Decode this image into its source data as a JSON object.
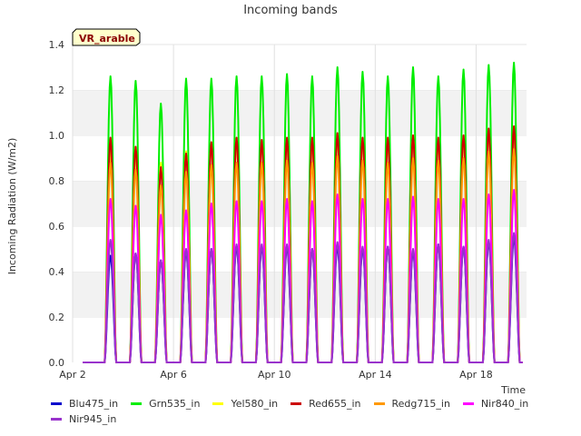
{
  "chart_data": {
    "type": "line",
    "title": "Incoming bands",
    "xlabel": "Time",
    "ylabel": "Incoming Radiation (W/m2)",
    "badge": "VR_arable",
    "xlim": [
      "2023-04-02",
      "2023-04-20"
    ],
    "x_ticks": [
      "Apr 2",
      "Apr 6",
      "Apr 10",
      "Apr 14",
      "Apr 18"
    ],
    "ylim": [
      0,
      1.4
    ],
    "y_ticks": [
      "0.0",
      "0.2",
      "0.4",
      "0.6",
      "0.8",
      "1.0",
      "1.2",
      "1.4"
    ],
    "grid": "horizontal bands",
    "legend_position": "bottom",
    "days": [
      "Apr 3",
      "Apr 4",
      "Apr 5",
      "Apr 6",
      "Apr 7",
      "Apr 8",
      "Apr 9",
      "Apr 10",
      "Apr 11",
      "Apr 12",
      "Apr 13",
      "Apr 14",
      "Apr 15",
      "Apr 16",
      "Apr 17",
      "Apr 18",
      "Apr 19"
    ],
    "series": [
      {
        "name": "Blu475_in",
        "color": "#0000cc",
        "daily_peak": [
          0.47,
          0.48,
          0.45,
          0.49,
          0.5,
          0.51,
          0.51,
          0.51,
          0.5,
          0.51,
          0.5,
          0.51,
          0.49,
          0.52,
          0.51,
          0.53,
          0.55
        ]
      },
      {
        "name": "Grn535_in",
        "color": "#00ee00",
        "daily_peak": [
          1.26,
          1.24,
          1.14,
          1.25,
          1.25,
          1.26,
          1.26,
          1.27,
          1.26,
          1.3,
          1.28,
          1.26,
          1.3,
          1.26,
          1.29,
          1.31,
          1.32
        ]
      },
      {
        "name": "Yel580_in",
        "color": "#ffff00",
        "daily_peak": [
          0.93,
          0.92,
          0.88,
          0.93,
          0.96,
          0.97,
          0.97,
          0.98,
          0.97,
          0.99,
          0.98,
          0.97,
          1.0,
          0.97,
          0.98,
          1.01,
          1.02
        ]
      },
      {
        "name": "Red655_in",
        "color": "#cc0000",
        "daily_peak": [
          0.99,
          0.95,
          0.86,
          0.92,
          0.97,
          0.99,
          0.98,
          0.99,
          0.99,
          1.01,
          0.99,
          0.99,
          1.0,
          0.99,
          1.0,
          1.03,
          1.04
        ]
      },
      {
        "name": "Redg715_in",
        "color": "#ff9900",
        "daily_peak": [
          0.88,
          0.85,
          0.78,
          0.84,
          0.87,
          0.88,
          0.88,
          0.89,
          0.88,
          0.91,
          0.89,
          0.88,
          0.9,
          0.89,
          0.9,
          0.93,
          0.94
        ]
      },
      {
        "name": "Nir840_in",
        "color": "#ff00ff",
        "daily_peak": [
          0.72,
          0.69,
          0.65,
          0.67,
          0.7,
          0.71,
          0.71,
          0.72,
          0.71,
          0.74,
          0.72,
          0.72,
          0.73,
          0.72,
          0.72,
          0.74,
          0.76
        ]
      },
      {
        "name": "Nir945_in",
        "color": "#9933cc",
        "daily_peak": [
          0.54,
          0.48,
          0.45,
          0.5,
          0.5,
          0.52,
          0.52,
          0.52,
          0.5,
          0.53,
          0.51,
          0.51,
          0.5,
          0.52,
          0.51,
          0.54,
          0.57
        ]
      }
    ]
  }
}
